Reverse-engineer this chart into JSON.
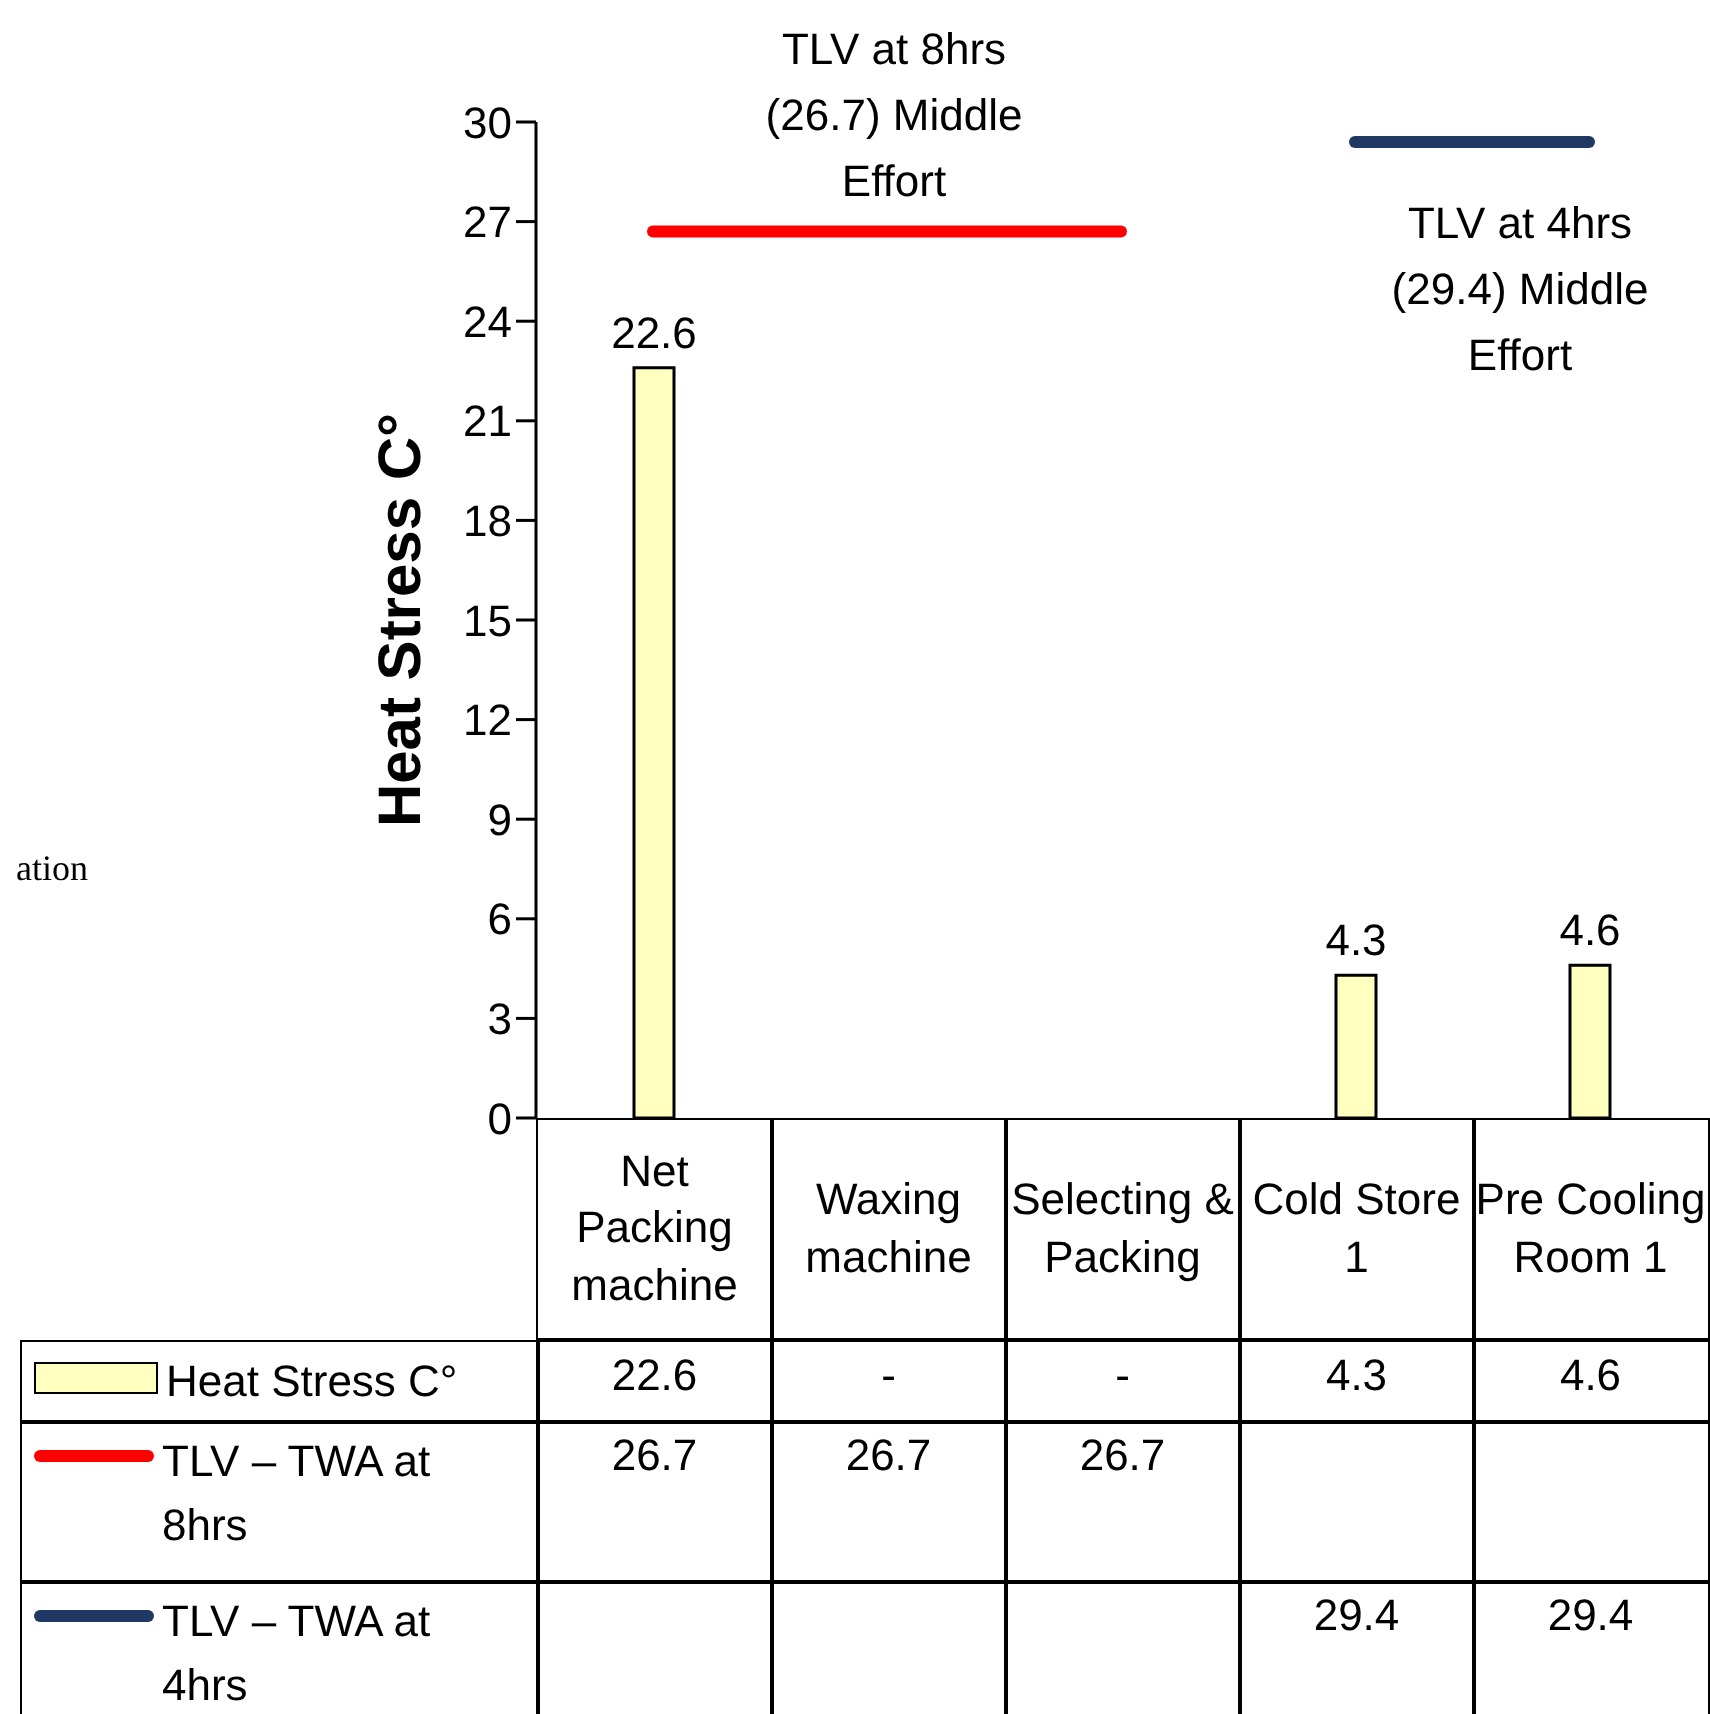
{
  "chart_data": {
    "type": "bar",
    "ylabel": "Heat Stress C°",
    "categories": [
      "Net Packing machine",
      "Waxing machine",
      "Selecting & Packing",
      "Cold Store 1",
      "Pre Cooling Room 1"
    ],
    "series": [
      {
        "name": "Heat Stress C°",
        "color": "#ffffc0",
        "values": [
          22.6,
          null,
          null,
          4.3,
          4.6
        ],
        "value_labels": [
          "22.6",
          "-",
          "-",
          "4.3",
          "4.6"
        ]
      },
      {
        "name": "TLV – TWA at 8hrs",
        "type": "line",
        "color": "#ff0000",
        "values": [
          26.7,
          26.7,
          26.7,
          null,
          null
        ],
        "value_labels": [
          "26.7",
          "26.7",
          "26.7",
          null,
          null
        ]
      },
      {
        "name": "TLV – TWA at 4hrs",
        "type": "line",
        "color": "#1f3864",
        "values": [
          null,
          null,
          null,
          29.4,
          29.4
        ],
        "value_labels": [
          null,
          null,
          null,
          "29.4",
          "29.4"
        ]
      }
    ],
    "ylim": [
      0,
      30
    ],
    "yticks": [
      0,
      3,
      6,
      9,
      12,
      15,
      18,
      21,
      24,
      27,
      30
    ],
    "legend": "bottom",
    "marker": "none",
    "annotations": [
      "TLV at 8hrs (26.7) Middle Effort",
      "TLV at 4hrs (29.4) Middle Effort",
      "ation"
    ]
  }
}
